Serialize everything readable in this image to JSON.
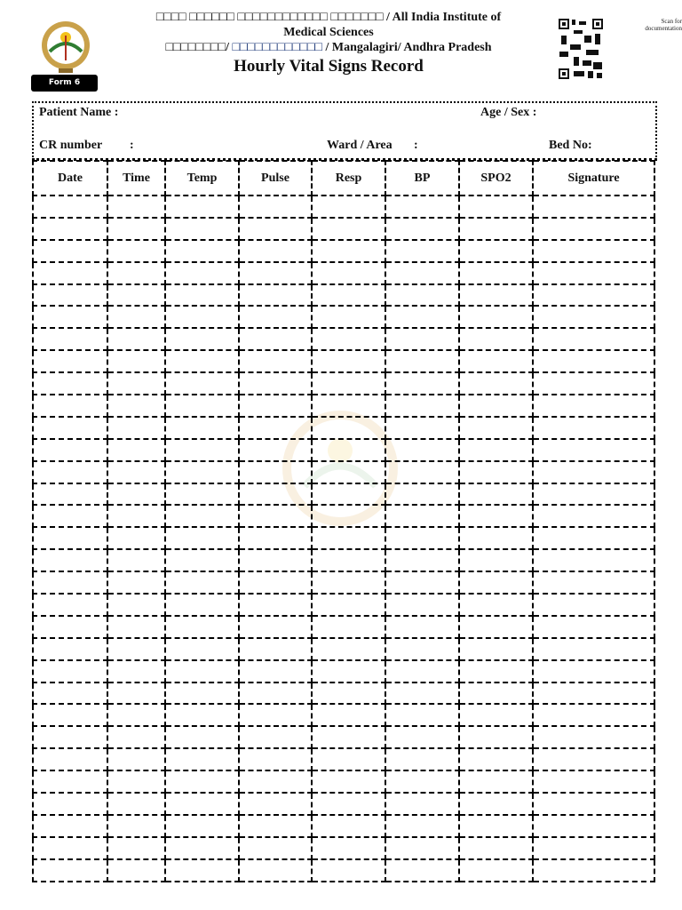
{
  "header": {
    "line1": "□□□□ □□□□□□ □□□□□□□□□□□□ □□□□□□□ / All India Institute of Medical Sciences",
    "line2_a": "□□□□□□□□/",
    "line2_b": "□□□□□□□□□□□□",
    "line2_c": "/ Mangalagiri/ Andhra Pradesh",
    "title": "Hourly Vital Signs Record",
    "form_badge": "Form 6",
    "qr_caption_1": "Scan for",
    "qr_caption_2": "documentation"
  },
  "patient": {
    "name_label": "Patient Name  :",
    "age_sex_label": "Age / Sex :",
    "cr_label": "CR number",
    "cr_colon": ":",
    "ward_label": "Ward / Area",
    "ward_colon": ":",
    "bed_label": "Bed No:"
  },
  "table": {
    "columns": [
      "Date",
      "Time",
      "Temp",
      "Pulse",
      "Resp",
      "BP",
      "SPO2",
      "Signature"
    ],
    "empty_rows": 31
  }
}
